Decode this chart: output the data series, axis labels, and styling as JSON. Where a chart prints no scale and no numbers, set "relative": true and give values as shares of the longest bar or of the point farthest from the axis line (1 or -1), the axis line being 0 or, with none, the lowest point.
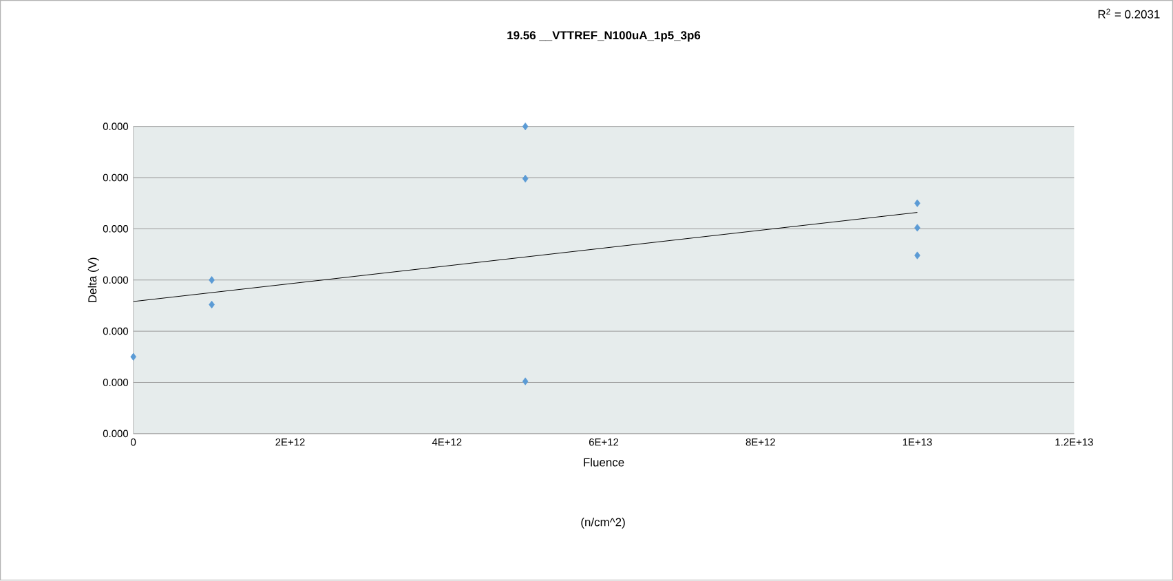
{
  "chart_data": {
    "type": "scatter",
    "title": "19.56 __VTTREF_N100uA_1p5_3p6",
    "xlabel": "Fluence",
    "ylabel": "Delta (V)",
    "annotations": [
      "R$^{2}$ = 0.2031",
      "(n/cm^2)",
      "0.000",
      "0.000",
      "0.000",
      "0.000",
      "0.000",
      "0.000",
      "0.000"
    ],
    "relative": true,
    "x": [
      0,
      1000000000000.0,
      1000000000000.0,
      5000000000000.0,
      5000000000000.0,
      5000000000000.0,
      10000000000000.0,
      10000000000000.0,
      10000000000000.0
    ],
    "series": [
      {
        "color": "#5b9bd5",
        "values": [
          0.25,
          0.5,
          0.42,
          1,
          0.83,
          0.17,
          0.75,
          0.67,
          0.58
        ]
      },
      {
        "type": "line",
        "marker": "none",
        "color": "#000000",
        "x": [
          0,
          10000000000000.0
        ],
        "values": [
          0.43,
          0.72
        ]
      }
    ],
    "xlim": [
      0,
      12000000000000.0
    ],
    "xticks": [
      0,
      {
        "value": 2000000000000.0,
        "label": "2E+12"
      },
      {
        "value": 4000000000000.0,
        "label": "4E+12"
      },
      {
        "value": 6000000000000.0,
        "label": "6E+12"
      },
      {
        "value": 8000000000000.0,
        "label": "8E+12"
      },
      {
        "value": 10000000000000.0,
        "label": "1E+13"
      },
      {
        "value": 12000000000000.0,
        "label": "1.2E+13"
      }
    ],
    "grid": "y",
    "marker": "diamond"
  }
}
